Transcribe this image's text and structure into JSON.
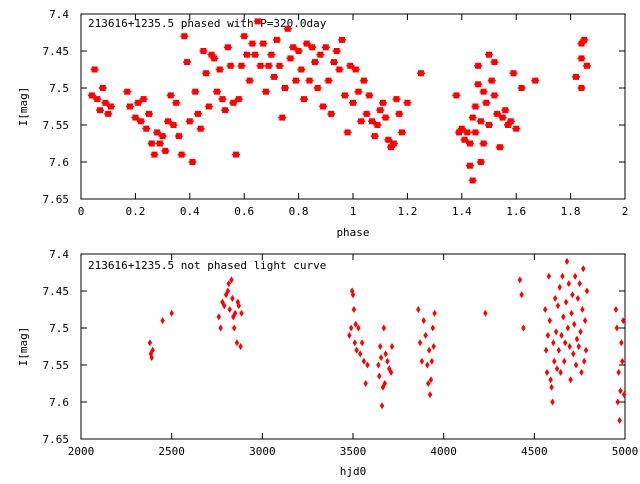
{
  "colors": {
    "points": "#ff0000",
    "frame": "#000000",
    "background": "#ffffff"
  },
  "chart_data": [
    {
      "type": "scatter",
      "title": "213616+1235.5 phased with P=320.0day",
      "xlabel": "phase",
      "ylabel": "I[mag]",
      "xlim": [
        0,
        2
      ],
      "ylim": [
        7.4,
        7.65
      ],
      "y_inverted": true,
      "grid": false,
      "x_ticks": [
        "0",
        "0.2",
        "0.4",
        "0.6",
        "0.8",
        "1",
        "1.2",
        "1.4",
        "1.6",
        "1.8",
        "2"
      ],
      "x_tick_values": [
        0,
        0.2,
        0.4,
        0.6,
        0.8,
        1.0,
        1.2,
        1.4,
        1.6,
        1.8,
        2.0
      ],
      "y_ticks": [
        "7.4",
        "7.45",
        "7.5",
        "7.55",
        "7.6",
        "7.65"
      ],
      "y_tick_values": [
        7.4,
        7.45,
        7.5,
        7.55,
        7.6,
        7.65
      ],
      "marker": "square",
      "points": [
        [
          0.04,
          7.51
        ],
        [
          0.05,
          7.475
        ],
        [
          0.06,
          7.515
        ],
        [
          0.07,
          7.53
        ],
        [
          0.08,
          7.5
        ],
        [
          0.09,
          7.52
        ],
        [
          0.1,
          7.535
        ],
        [
          0.11,
          7.525
        ],
        [
          0.17,
          7.505
        ],
        [
          0.18,
          7.525
        ],
        [
          0.2,
          7.54
        ],
        [
          0.21,
          7.52
        ],
        [
          0.22,
          7.545
        ],
        [
          0.23,
          7.515
        ],
        [
          0.24,
          7.555
        ],
        [
          0.25,
          7.535
        ],
        [
          0.26,
          7.575
        ],
        [
          0.27,
          7.59
        ],
        [
          0.28,
          7.56
        ],
        [
          0.29,
          7.575
        ],
        [
          0.3,
          7.565
        ],
        [
          0.31,
          7.585
        ],
        [
          0.32,
          7.545
        ],
        [
          0.33,
          7.51
        ],
        [
          0.34,
          7.55
        ],
        [
          0.35,
          7.52
        ],
        [
          0.36,
          7.565
        ],
        [
          0.37,
          7.59
        ],
        [
          0.38,
          7.43
        ],
        [
          0.39,
          7.465
        ],
        [
          0.4,
          7.545
        ],
        [
          0.41,
          7.6
        ],
        [
          0.42,
          7.505
        ],
        [
          0.43,
          7.535
        ],
        [
          0.44,
          7.555
        ],
        [
          0.45,
          7.45
        ],
        [
          0.46,
          7.48
        ],
        [
          0.47,
          7.525
        ],
        [
          0.48,
          7.455
        ],
        [
          0.49,
          7.46
        ],
        [
          0.5,
          7.505
        ],
        [
          0.51,
          7.475
        ],
        [
          0.52,
          7.515
        ],
        [
          0.53,
          7.53
        ],
        [
          0.54,
          7.445
        ],
        [
          0.55,
          7.47
        ],
        [
          0.56,
          7.52
        ],
        [
          0.57,
          7.59
        ],
        [
          0.58,
          7.515
        ],
        [
          0.59,
          7.47
        ],
        [
          0.6,
          7.43
        ],
        [
          0.61,
          7.455
        ],
        [
          0.62,
          7.49
        ],
        [
          0.63,
          7.44
        ],
        [
          0.64,
          7.455
        ],
        [
          0.65,
          7.41
        ],
        [
          0.66,
          7.47
        ],
        [
          0.67,
          7.44
        ],
        [
          0.68,
          7.505
        ],
        [
          0.69,
          7.47
        ],
        [
          0.7,
          7.455
        ],
        [
          0.71,
          7.485
        ],
        [
          0.72,
          7.435
        ],
        [
          0.73,
          7.47
        ],
        [
          0.74,
          7.54
        ],
        [
          0.75,
          7.5
        ],
        [
          0.76,
          7.42
        ],
        [
          0.77,
          7.46
        ],
        [
          0.78,
          7.445
        ],
        [
          0.79,
          7.49
        ],
        [
          0.8,
          7.45
        ],
        [
          0.81,
          7.475
        ],
        [
          0.82,
          7.515
        ],
        [
          0.83,
          7.44
        ],
        [
          0.84,
          7.49
        ],
        [
          0.85,
          7.445
        ],
        [
          0.86,
          7.465
        ],
        [
          0.87,
          7.5
        ],
        [
          0.88,
          7.455
        ],
        [
          0.89,
          7.525
        ],
        [
          0.9,
          7.445
        ],
        [
          0.91,
          7.49
        ],
        [
          0.92,
          7.535
        ],
        [
          0.93,
          7.465
        ],
        [
          0.94,
          7.45
        ],
        [
          0.95,
          7.475
        ],
        [
          0.96,
          7.435
        ],
        [
          0.97,
          7.51
        ],
        [
          0.98,
          7.56
        ],
        [
          0.99,
          7.47
        ],
        [
          1.0,
          7.52
        ],
        [
          1.01,
          7.475
        ],
        [
          1.02,
          7.505
        ],
        [
          1.03,
          7.545
        ],
        [
          1.04,
          7.49
        ],
        [
          1.05,
          7.535
        ],
        [
          1.06,
          7.51
        ],
        [
          1.07,
          7.545
        ],
        [
          1.08,
          7.565
        ],
        [
          1.09,
          7.55
        ],
        [
          1.1,
          7.53
        ],
        [
          1.11,
          7.52
        ],
        [
          1.12,
          7.54
        ],
        [
          1.13,
          7.57
        ],
        [
          1.14,
          7.58
        ],
        [
          1.15,
          7.575
        ],
        [
          1.16,
          7.515
        ],
        [
          1.17,
          7.535
        ],
        [
          1.18,
          7.56
        ],
        [
          1.2,
          7.52
        ],
        [
          1.25,
          7.48
        ],
        [
          1.38,
          7.51
        ],
        [
          1.39,
          7.56
        ],
        [
          1.4,
          7.555
        ],
        [
          1.41,
          7.57
        ],
        [
          1.42,
          7.56
        ],
        [
          1.43,
          7.605
        ],
        [
          1.44,
          7.54
        ],
        [
          1.45,
          7.525
        ],
        [
          1.46,
          7.495
        ],
        [
          1.47,
          7.6
        ],
        [
          1.48,
          7.575
        ],
        [
          1.49,
          7.52
        ],
        [
          1.5,
          7.55
        ],
        [
          1.51,
          7.49
        ],
        [
          1.52,
          7.465
        ],
        [
          1.53,
          7.535
        ],
        [
          1.54,
          7.58
        ],
        [
          1.55,
          7.54
        ],
        [
          1.56,
          7.53
        ],
        [
          1.57,
          7.55
        ],
        [
          1.58,
          7.545
        ],
        [
          1.59,
          7.48
        ],
        [
          1.6,
          7.555
        ],
        [
          1.62,
          7.5
        ],
        [
          1.44,
          7.625
        ],
        [
          1.46,
          7.47
        ],
        [
          1.48,
          7.505
        ],
        [
          1.5,
          7.455
        ],
        [
          1.52,
          7.51
        ],
        [
          1.47,
          7.545
        ],
        [
          1.45,
          7.56
        ],
        [
          1.43,
          7.575
        ],
        [
          1.67,
          7.49
        ],
        [
          1.82,
          7.485
        ],
        [
          1.84,
          7.46
        ],
        [
          1.84,
          7.44
        ],
        [
          1.85,
          7.435
        ],
        [
          1.86,
          7.47
        ],
        [
          1.84,
          7.5
        ]
      ]
    },
    {
      "type": "scatter",
      "title": "213616+1235.5 not phased light curve",
      "xlabel": "hjd0",
      "ylabel": "I[mag]",
      "xlim": [
        2000,
        5000
      ],
      "ylim": [
        7.4,
        7.65
      ],
      "y_inverted": true,
      "grid": false,
      "x_ticks": [
        "2000",
        "2500",
        "3000",
        "3500",
        "4000",
        "4500",
        "5000"
      ],
      "x_tick_values": [
        2000,
        2500,
        3000,
        3500,
        4000,
        4500,
        5000
      ],
      "y_ticks": [
        "7.4",
        "7.45",
        "7.5",
        "7.55",
        "7.6",
        "7.65"
      ],
      "y_tick_values": [
        7.4,
        7.45,
        7.5,
        7.55,
        7.6,
        7.65
      ],
      "marker": "diamond",
      "points": [
        [
          2380,
          7.52
        ],
        [
          2385,
          7.535
        ],
        [
          2390,
          7.54
        ],
        [
          2395,
          7.53
        ],
        [
          2450,
          7.49
        ],
        [
          2500,
          7.48
        ],
        [
          2760,
          7.485
        ],
        [
          2770,
          7.5
        ],
        [
          2780,
          7.465
        ],
        [
          2790,
          7.47
        ],
        [
          2800,
          7.455
        ],
        [
          2810,
          7.45
        ],
        [
          2815,
          7.44
        ],
        [
          2820,
          7.475
        ],
        [
          2830,
          7.435
        ],
        [
          2835,
          7.46
        ],
        [
          2840,
          7.485
        ],
        [
          2845,
          7.5
        ],
        [
          2850,
          7.48
        ],
        [
          2860,
          7.52
        ],
        [
          2865,
          7.465
        ],
        [
          2870,
          7.47
        ],
        [
          2880,
          7.525
        ],
        [
          2885,
          7.48
        ],
        [
          3480,
          7.51
        ],
        [
          3490,
          7.5
        ],
        [
          3495,
          7.45
        ],
        [
          3500,
          7.455
        ],
        [
          3505,
          7.475
        ],
        [
          3510,
          7.52
        ],
        [
          3515,
          7.495
        ],
        [
          3520,
          7.53
        ],
        [
          3530,
          7.5
        ],
        [
          3540,
          7.535
        ],
        [
          3550,
          7.52
        ],
        [
          3560,
          7.545
        ],
        [
          3570,
          7.575
        ],
        [
          3580,
          7.55
        ],
        [
          3640,
          7.55
        ],
        [
          3645,
          7.565
        ],
        [
          3650,
          7.525
        ],
        [
          3655,
          7.54
        ],
        [
          3660,
          7.605
        ],
        [
          3665,
          7.58
        ],
        [
          3670,
          7.5
        ],
        [
          3675,
          7.575
        ],
        [
          3680,
          7.535
        ],
        [
          3690,
          7.545
        ],
        [
          3700,
          7.555
        ],
        [
          3710,
          7.56
        ],
        [
          3715,
          7.525
        ],
        [
          3860,
          7.475
        ],
        [
          3870,
          7.52
        ],
        [
          3880,
          7.545
        ],
        [
          3890,
          7.49
        ],
        [
          3900,
          7.51
        ],
        [
          3910,
          7.55
        ],
        [
          3915,
          7.575
        ],
        [
          3920,
          7.53
        ],
        [
          3925,
          7.59
        ],
        [
          3930,
          7.57
        ],
        [
          3935,
          7.545
        ],
        [
          3940,
          7.5
        ],
        [
          3945,
          7.525
        ],
        [
          3950,
          7.48
        ],
        [
          4230,
          7.48
        ],
        [
          4420,
          7.435
        ],
        [
          4430,
          7.455
        ],
        [
          4440,
          7.5
        ],
        [
          4560,
          7.475
        ],
        [
          4565,
          7.53
        ],
        [
          4570,
          7.56
        ],
        [
          4575,
          7.51
        ],
        [
          4580,
          7.43
        ],
        [
          4585,
          7.49
        ],
        [
          4590,
          7.57
        ],
        [
          4595,
          7.58
        ],
        [
          4600,
          7.6
        ],
        [
          4605,
          7.52
        ],
        [
          4610,
          7.545
        ],
        [
          4615,
          7.46
        ],
        [
          4620,
          7.505
        ],
        [
          4625,
          7.555
        ],
        [
          4630,
          7.47
        ],
        [
          4635,
          7.53
        ],
        [
          4640,
          7.445
        ],
        [
          4645,
          7.56
        ],
        [
          4650,
          7.51
        ],
        [
          4655,
          7.43
        ],
        [
          4660,
          7.485
        ],
        [
          4665,
          7.545
        ],
        [
          4670,
          7.52
        ],
        [
          4675,
          7.465
        ],
        [
          4680,
          7.41
        ],
        [
          4685,
          7.5
        ],
        [
          4690,
          7.44
        ],
        [
          4695,
          7.525
        ],
        [
          4700,
          7.57
        ],
        [
          4705,
          7.48
        ],
        [
          4710,
          7.455
        ],
        [
          4715,
          7.535
        ],
        [
          4720,
          7.495
        ],
        [
          4725,
          7.43
        ],
        [
          4730,
          7.55
        ],
        [
          4735,
          7.515
        ],
        [
          4740,
          7.46
        ],
        [
          4745,
          7.525
        ],
        [
          4750,
          7.44
        ],
        [
          4755,
          7.505
        ],
        [
          4760,
          7.56
        ],
        [
          4765,
          7.475
        ],
        [
          4770,
          7.42
        ],
        [
          4775,
          7.545
        ],
        [
          4780,
          7.49
        ],
        [
          4785,
          7.53
        ],
        [
          4790,
          7.45
        ],
        [
          4950,
          7.475
        ],
        [
          4955,
          7.5
        ],
        [
          4960,
          7.6
        ],
        [
          4965,
          7.56
        ],
        [
          4970,
          7.625
        ],
        [
          4975,
          7.585
        ],
        [
          4980,
          7.52
        ],
        [
          4985,
          7.545
        ],
        [
          4990,
          7.49
        ],
        [
          4995,
          7.59
        ]
      ]
    }
  ]
}
